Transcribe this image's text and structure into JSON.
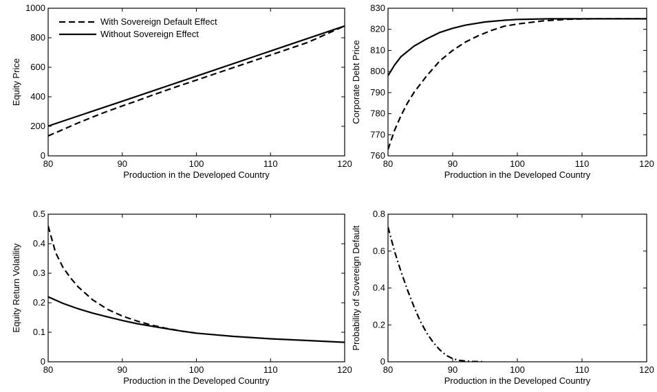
{
  "chart_data": [
    {
      "type": "line",
      "xlabel": "Production in the Developed Country",
      "ylabel": "Equity Price",
      "xlim": [
        80,
        120
      ],
      "ylim": [
        0,
        1000
      ],
      "xticks": [
        80,
        90,
        100,
        110,
        120
      ],
      "yticks": [
        0,
        200,
        400,
        600,
        800,
        1000
      ],
      "grid": false,
      "legend": {
        "placement": "top-left",
        "entries": [
          "With Sovereign Default Effect",
          "Without Sovereign Effect"
        ]
      },
      "series": [
        {
          "name": "With Sovereign Default Effect",
          "style": "dashed",
          "x": [
            80,
            82,
            84,
            86,
            88,
            90,
            92,
            94,
            96,
            98,
            100,
            105,
            110,
            115,
            120
          ],
          "y": [
            135,
            178,
            222,
            263,
            302,
            338,
            373,
            410,
            445,
            480,
            513,
            598,
            683,
            768,
            880
          ]
        },
        {
          "name": "Without Sovereign Effect",
          "style": "solid",
          "x": [
            80,
            90,
            100,
            110,
            120
          ],
          "y": [
            202,
            370,
            540,
            710,
            880
          ]
        }
      ]
    },
    {
      "type": "line",
      "xlabel": "Production in the Developed Country",
      "ylabel": "Corporate Debt Price",
      "xlim": [
        80,
        120
      ],
      "ylim": [
        760,
        830
      ],
      "xticks": [
        80,
        90,
        100,
        110,
        120
      ],
      "yticks": [
        760,
        770,
        780,
        790,
        800,
        810,
        820,
        830
      ],
      "grid": false,
      "series": [
        {
          "name": "With Sovereign Default Effect",
          "style": "dashed",
          "x": [
            80,
            81,
            82,
            83,
            84,
            86,
            88,
            90,
            92,
            94,
            96,
            98,
            100,
            104,
            108,
            112,
            120
          ],
          "y": [
            763,
            772,
            779,
            785,
            790,
            798,
            805,
            810,
            814,
            817,
            819.5,
            821.5,
            822.5,
            824,
            824.8,
            825,
            825
          ]
        },
        {
          "name": "Without Sovereign Effect",
          "style": "solid",
          "x": [
            80,
            81,
            82,
            84,
            86,
            88,
            90,
            92,
            95,
            98,
            100,
            105,
            110,
            120
          ],
          "y": [
            798,
            803,
            807,
            812,
            815.5,
            818.5,
            820.5,
            822,
            823.5,
            824.3,
            824.7,
            825,
            825,
            825
          ]
        }
      ]
    },
    {
      "type": "line",
      "xlabel": "Production in the Developed Country",
      "ylabel": "Equity Return Volatility",
      "xlim": [
        80,
        120
      ],
      "ylim": [
        0,
        0.5
      ],
      "xticks": [
        80,
        90,
        100,
        110,
        120
      ],
      "yticks": [
        0,
        0.1,
        0.2,
        0.3,
        0.4,
        0.5
      ],
      "grid": false,
      "series": [
        {
          "name": "With Sovereign Default Effect",
          "style": "dashed",
          "x": [
            80,
            81,
            82,
            83,
            84,
            86,
            88,
            90,
            92,
            94,
            96,
            98,
            100
          ],
          "y": [
            0.46,
            0.37,
            0.32,
            0.285,
            0.255,
            0.21,
            0.178,
            0.155,
            0.138,
            0.124,
            0.113,
            0.104,
            0.097
          ]
        },
        {
          "name": "Without Sovereign Effect",
          "style": "solid",
          "x": [
            80,
            82,
            84,
            86,
            88,
            90,
            92,
            95,
            98,
            100,
            105,
            110,
            115,
            120
          ],
          "y": [
            0.22,
            0.198,
            0.18,
            0.165,
            0.152,
            0.14,
            0.129,
            0.116,
            0.104,
            0.097,
            0.086,
            0.078,
            0.072,
            0.066
          ]
        }
      ]
    },
    {
      "type": "line",
      "xlabel": "Production in the Developed Country",
      "ylabel": "Probability of Sovereign Default",
      "xlim": [
        80,
        120
      ],
      "ylim": [
        0,
        0.8
      ],
      "xticks": [
        80,
        90,
        100,
        110,
        120
      ],
      "yticks": [
        0,
        0.2,
        0.4,
        0.6,
        0.8
      ],
      "grid": false,
      "series": [
        {
          "style": "dashdot",
          "x": [
            80,
            81,
            82,
            83,
            84,
            85,
            86,
            87,
            88,
            89,
            90,
            91,
            92,
            93,
            94,
            95
          ],
          "y": [
            0.73,
            0.6,
            0.49,
            0.39,
            0.3,
            0.22,
            0.155,
            0.105,
            0.065,
            0.035,
            0.017,
            0.008,
            0.004,
            0.002,
            0.001,
            0
          ]
        }
      ]
    }
  ]
}
